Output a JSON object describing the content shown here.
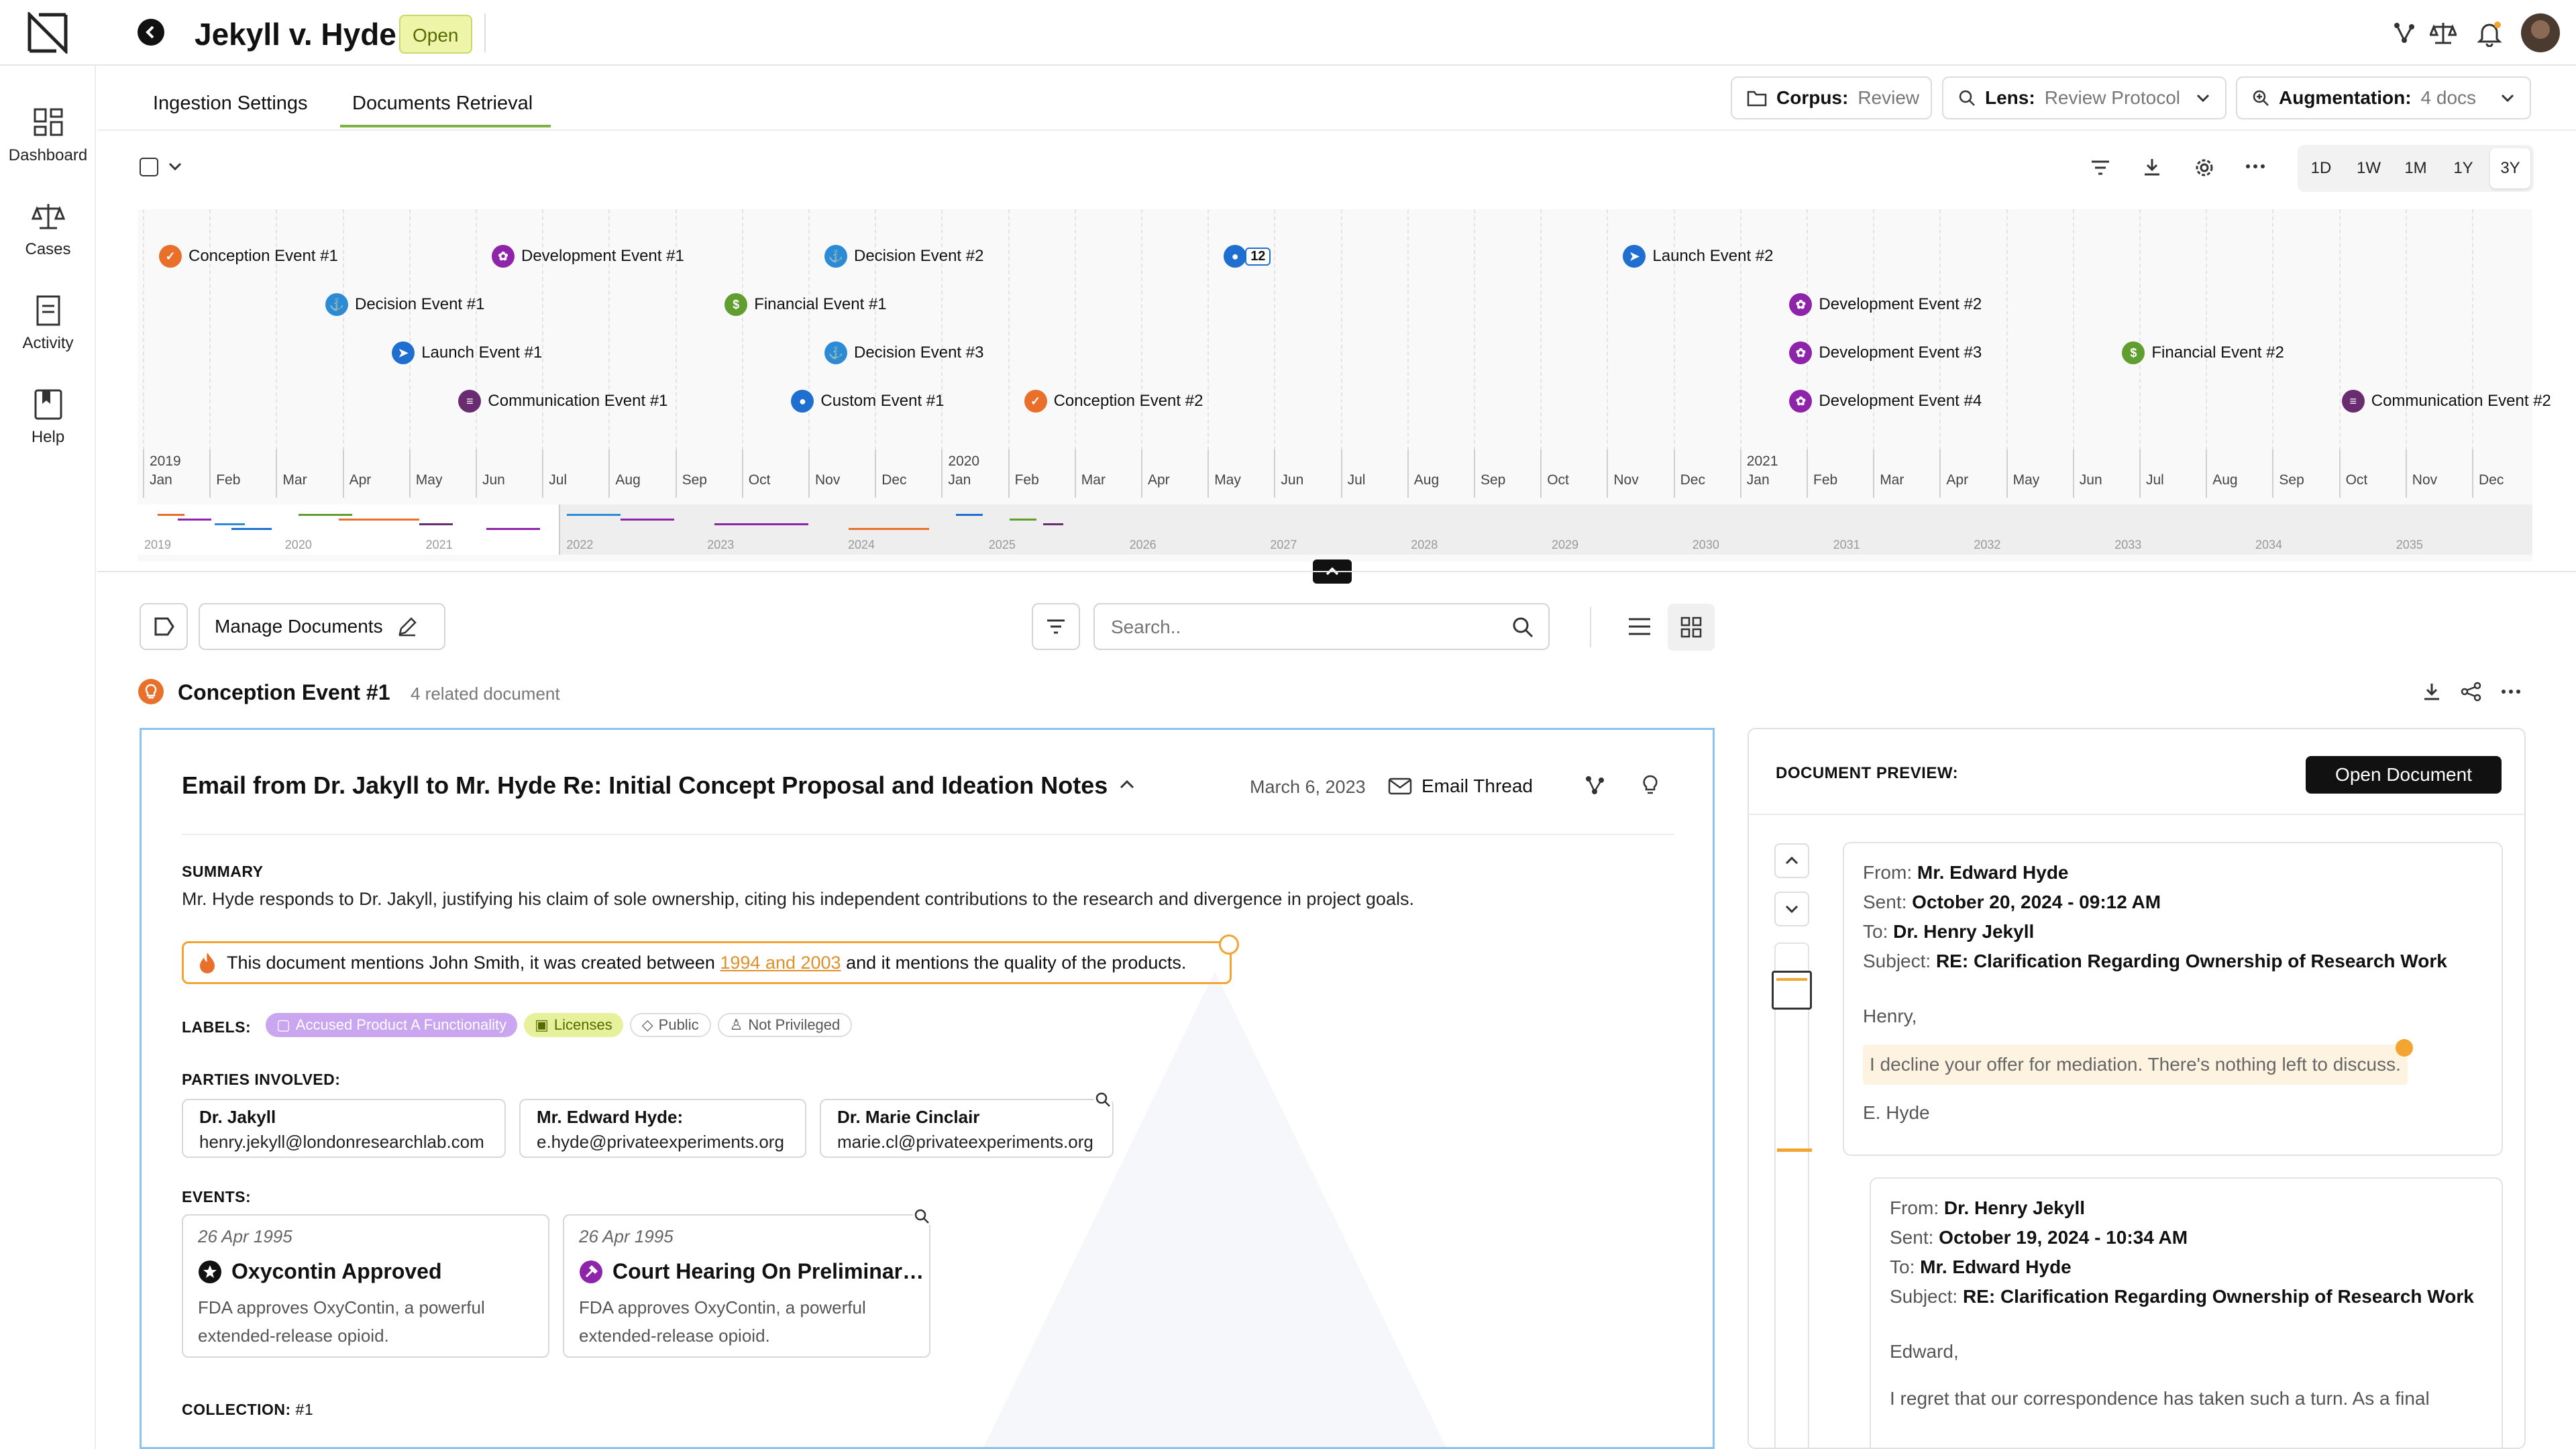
{
  "header": {
    "title": "Jekyll v. Hyde",
    "status": "Open"
  },
  "sidebar": {
    "items": [
      {
        "label": "Dashboard",
        "icon": "dashboard-icon"
      },
      {
        "label": "Cases",
        "icon": "scales-icon"
      },
      {
        "label": "Activity",
        "icon": "document-icon"
      },
      {
        "label": "Help",
        "icon": "bookmark-book-icon"
      }
    ]
  },
  "tabs": [
    {
      "label": "Ingestion Settings"
    },
    {
      "label": "Documents Retrieval",
      "active": true
    }
  ],
  "filters": {
    "corpus": {
      "label": "Corpus:",
      "value": "Review"
    },
    "lens": {
      "label": "Lens:",
      "value": "Review Protocol"
    },
    "augmentation": {
      "label": "Augmentation:",
      "value": "4 docs"
    }
  },
  "ranges": [
    "1D",
    "1W",
    "1M",
    "1Y",
    "3Y"
  ],
  "selected_range": "3Y",
  "timeline": {
    "events": [
      {
        "label": "Conception Event #1",
        "type": "conception",
        "row": 0,
        "month": 0
      },
      {
        "label": "Development Event #1",
        "type": "development",
        "row": 0,
        "month": 5
      },
      {
        "label": "Decision Event #2",
        "type": "decision",
        "row": 0,
        "month": 10
      },
      {
        "label": "12",
        "type": "cluster",
        "row": 0,
        "month": 16
      },
      {
        "label": "Launch Event #2",
        "type": "launch",
        "row": 0,
        "month": 22
      },
      {
        "label": "Decision Event #1",
        "type": "decision",
        "row": 1,
        "month": 2.5
      },
      {
        "label": "Financial Event #1",
        "type": "financial",
        "row": 1,
        "month": 8.5
      },
      {
        "label": "Development Event #2",
        "type": "development",
        "row": 1,
        "month": 24.5
      },
      {
        "label": "Launch Event #1",
        "type": "launch",
        "row": 2,
        "month": 3.5
      },
      {
        "label": "Decision Event #3",
        "type": "decision",
        "row": 2,
        "month": 10
      },
      {
        "label": "Development Event #3",
        "type": "development",
        "row": 2,
        "month": 24.5
      },
      {
        "label": "Financial Event #2",
        "type": "financial",
        "row": 2,
        "month": 29.5
      },
      {
        "label": "Communication Event #1",
        "type": "communication",
        "row": 3,
        "month": 4.5
      },
      {
        "label": "Custom Event #1",
        "type": "custom",
        "row": 3,
        "month": 9.5
      },
      {
        "label": "Conception Event #2",
        "type": "conception",
        "row": 3,
        "month": 13
      },
      {
        "label": "Development Event #4",
        "type": "development",
        "row": 3,
        "month": 24.5
      },
      {
        "label": "Communication Event #2",
        "type": "communication",
        "row": 3,
        "month": 32.8
      }
    ],
    "years": [
      "2019",
      "2020",
      "2021"
    ],
    "months": [
      "Jan",
      "Feb",
      "Mar",
      "Apr",
      "May",
      "Jun",
      "Jul",
      "Aug",
      "Sep",
      "Oct",
      "Nov",
      "Dec"
    ],
    "mini_years": [
      "2019",
      "2020",
      "2021",
      "2022",
      "2023",
      "2024",
      "2025",
      "2026",
      "2027",
      "2028",
      "2029",
      "2030",
      "2031",
      "2032",
      "2033",
      "2034",
      "2035"
    ]
  },
  "toolbar": {
    "manage_label": "Manage Documents",
    "search_placeholder": "Search.."
  },
  "group": {
    "title": "Conception Event #1",
    "count": "4 related document"
  },
  "doc": {
    "title": "Email from Dr. Jakyll to Mr. Hyde Re: Initial Concept Proposal and Ideation Notes",
    "date": "March 6, 2023",
    "type": "Email Thread",
    "summary_label": "SUMMARY",
    "summary": "Mr. Hyde responds to Dr. Jakyll, justifying his claim of sole ownership, citing his independent contributions to the research and divergence in project goals.",
    "insight_pre": "This document mentions John Smith, it was created between ",
    "insight_link": "1994 and 2003",
    "insight_post": " and it mentions the quality of the products.",
    "labels_label": "LABELS:",
    "labels": [
      "Accused Product A Functionality",
      "Licenses",
      "Public",
      "Not Privileged"
    ],
    "parties_label": "PARTIES INVOLVED:",
    "parties": [
      {
        "name": "Dr. Jakyll",
        "email": "henry.jekyll@londonresearchlab.com"
      },
      {
        "name": "Mr. Edward Hyde:",
        "email": "e.hyde@privateexperiments.org"
      },
      {
        "name": "Dr. Marie Cinclair",
        "email": "marie.cl@privateexperiments.org"
      }
    ],
    "events_label": "EVENTS:",
    "events": [
      {
        "date": "26 Apr 1995",
        "title": "Oxycontin Approved",
        "desc1": "FDA approves OxyContin, a powerful",
        "desc2": "extended-release opioid."
      },
      {
        "date": "26 Apr 1995",
        "title": "Court Hearing On Preliminar…",
        "desc1": "FDA approves OxyContin, a powerful",
        "desc2": "extended-release opioid."
      }
    ],
    "collection_label": "COLLECTION:",
    "collection": "#1"
  },
  "preview": {
    "heading": "DOCUMENT PREVIEW:",
    "open_label": "Open Document",
    "mails": [
      {
        "from_k": "From:",
        "from": "Mr. Edward Hyde",
        "sent_k": "Sent:",
        "sent": "October 20, 2024 - 09:12 AM",
        "to_k": "To:",
        "to": "Dr. Henry Jekyll",
        "subj_k": "Subject:",
        "subj": "RE: Clarification Regarding Ownership of Research Work",
        "greeting": "Henry,",
        "body": "I decline your offer for mediation. There's nothing left to discuss.",
        "sign": "E. Hyde"
      },
      {
        "from_k": "From:",
        "from": "Dr. Henry Jekyll",
        "sent_k": "Sent:",
        "sent": "October 19, 2024 - 10:34 AM",
        "to_k": "To:",
        "to": "Mr. Edward Hyde",
        "subj_k": "Subject:",
        "subj": "RE: Clarification Regarding Ownership of Research Work",
        "greeting": "Edward,",
        "body": "I regret that our correspondence has taken such a turn. As a final"
      }
    ]
  },
  "colors": {
    "accent": "#7cb342",
    "status_bg": "#eef5a8",
    "highlight": "#f2a530",
    "link": "#e0902a",
    "card_border": "#8bc4ef",
    "purple": "#8e24aa",
    "blue": "#1e6fd0"
  }
}
